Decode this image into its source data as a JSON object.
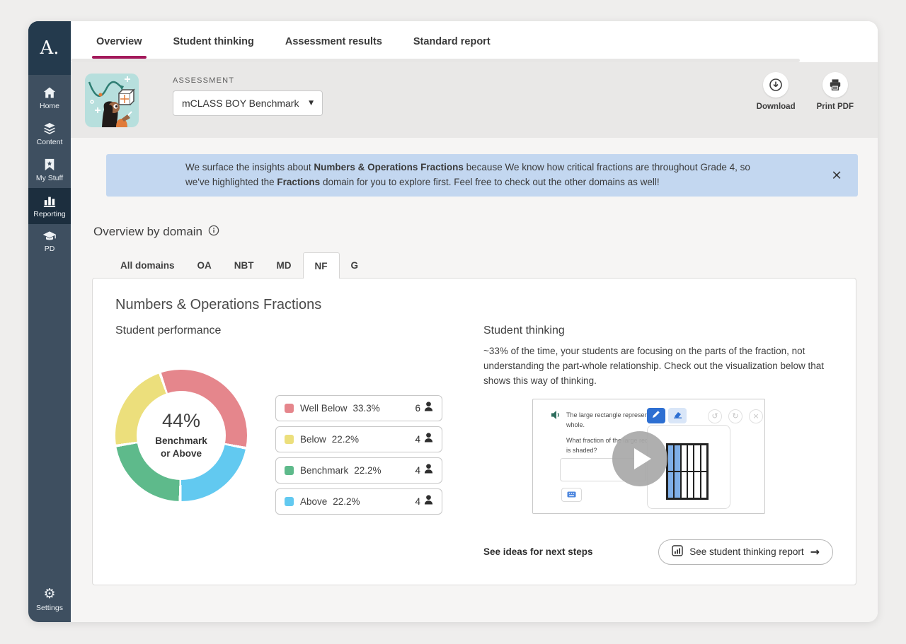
{
  "sidebar": {
    "logo": "A.",
    "items": [
      {
        "label": "Home",
        "icon": "home-icon",
        "active": false
      },
      {
        "label": "Content",
        "icon": "content-icon",
        "active": false
      },
      {
        "label": "My Stuff",
        "icon": "my-stuff-icon",
        "active": false
      },
      {
        "label": "Reporting",
        "icon": "reporting-icon",
        "active": true
      },
      {
        "label": "PD",
        "icon": "pd-icon",
        "active": false
      }
    ],
    "settings_label": "Settings",
    "colors": {
      "bg": "#3e4f60",
      "logo_bg": "#243a4d",
      "active_bg": "#1c2e3e"
    }
  },
  "tabs": [
    {
      "label": "Overview",
      "active": true
    },
    {
      "label": "Student thinking",
      "active": false
    },
    {
      "label": "Assessment results",
      "active": false
    },
    {
      "label": "Standard report",
      "active": false
    }
  ],
  "accent_color": "#a3195b",
  "header": {
    "assessment_label": "ASSESSMENT",
    "assessment_value": "mCLASS BOY Benchmark",
    "download_label": "Download",
    "print_label": "Print PDF"
  },
  "banner": {
    "part1": "We surface the insights about ",
    "bold1": "Numbers & Operations Fractions",
    "part2": " because We know how critical fractions are throughout Grade 4, so we've highlighted the ",
    "bold2": "Fractions",
    "part3": " domain for you to explore first. Feel free to check out the other domains as well!",
    "bg_color": "#c3d7f0"
  },
  "overview": {
    "title": "Overview by domain",
    "domain_tabs": [
      {
        "label": "All domains",
        "active": false
      },
      {
        "label": "OA",
        "active": false
      },
      {
        "label": "NBT",
        "active": false
      },
      {
        "label": "MD",
        "active": false
      },
      {
        "label": "NF",
        "active": true
      },
      {
        "label": "G",
        "active": false
      }
    ]
  },
  "card": {
    "title": "Numbers & Operations Fractions",
    "performance_title": "Student performance",
    "thinking_title": "Student thinking",
    "thinking_text": "~33% of the time, your students are focusing on the parts of the fraction, not understanding the part-whole relationship. Check out the visualization below that shows this way of thinking.",
    "next_steps_label": "See ideas for next steps",
    "report_button_label": "See student thinking report"
  },
  "chart_data": {
    "type": "pie",
    "title": "Student performance",
    "center_value": "44%",
    "center_label_line1": "Benchmark",
    "center_label_line2": "or Above",
    "legend_position": "right",
    "donut_hole": true,
    "segments": [
      {
        "label": "Well Below",
        "value": 33.3,
        "percent_label": "33.3%",
        "count": "6",
        "color": "#e5868c"
      },
      {
        "label": "Below",
        "value": 22.2,
        "percent_label": "22.2%",
        "count": "4",
        "color": "#ecdf7c"
      },
      {
        "label": "Benchmark",
        "value": 22.2,
        "percent_label": "22.2%",
        "count": "4",
        "color": "#5eba8b"
      },
      {
        "label": "Above",
        "value": 22.2,
        "percent_label": "22.2%",
        "count": "4",
        "color": "#62c9f0"
      }
    ]
  },
  "visualization": {
    "prompt1": "The large rectangle represents 1 whole.",
    "prompt2": "What fraction of the large rectangle is shaded?",
    "input_value": "",
    "grid": {
      "rows": 2,
      "cols": 6,
      "shaded_cols": 2
    }
  },
  "icons": {
    "dropdown_caret": "▼",
    "close": "×",
    "undo": "↺",
    "redo": "↻",
    "arrow_right": "→"
  }
}
